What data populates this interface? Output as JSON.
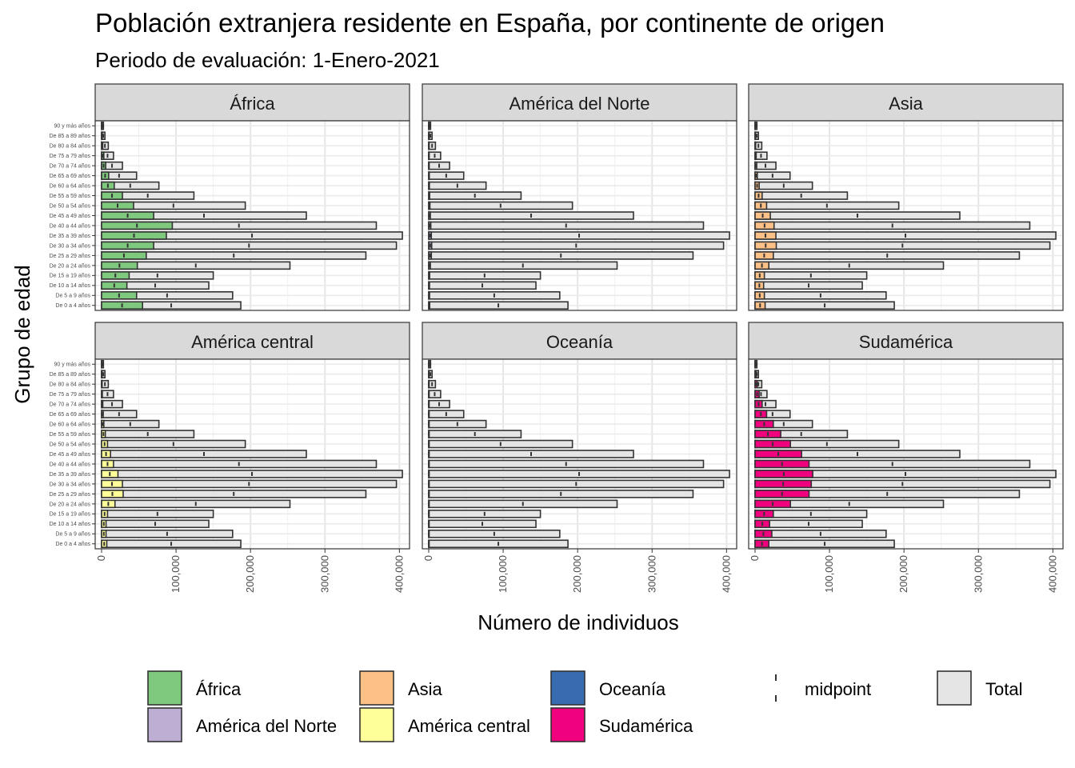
{
  "chart_data": {
    "type": "bar",
    "orientation": "horizontal",
    "layout": "facet-grid-2x3",
    "title": "Población extranjera residente en España, por continente de origen",
    "subtitle": "Periodo de evaluación: 1-Enero-2021",
    "xlabel": "Número de individuos",
    "ylabel": "Grupo de edad",
    "xlim": [
      0,
      405000
    ],
    "x_ticks": [
      0,
      100000,
      200000,
      300000,
      400000
    ],
    "x_tick_labels": [
      "0",
      "100,000",
      "200,000",
      "300,000",
      "400,000"
    ],
    "grid": true,
    "categories": [
      "90 y más años",
      "De 85 a 89 años",
      "De 80 a 84 años",
      "De 75 a 79 años",
      "De 70 a 74 años",
      "De 65 a 69 años",
      "De 60 a 64 años",
      "De 55 a 59 años",
      "De 50 a 54 años",
      "De 45 a 49 años",
      "De 40 a 44 años",
      "De 35 a 39 años",
      "De 30 a 34 años",
      "De 25 a 29 años",
      "De 20 a 24 años",
      "De 15 a 19 años",
      "De 10 a 14 años",
      "De 5 a 9 años",
      "De 0 a 4 años"
    ],
    "totals": [
      2500,
      4500,
      9000,
      16000,
      28000,
      47000,
      77000,
      124000,
      193000,
      275000,
      369000,
      404000,
      396000,
      355000,
      253000,
      150000,
      144000,
      176000,
      187000
    ],
    "legend_position": "bottom",
    "legend": [
      {
        "label": "África",
        "color": "#7fc97f"
      },
      {
        "label": "América del Norte",
        "color": "#beaed4"
      },
      {
        "label": "Asia",
        "color": "#fdc086"
      },
      {
        "label": "América central",
        "color": "#ffff99"
      },
      {
        "label": "Oceanía",
        "color": "#386cb0"
      },
      {
        "label": "Sudamérica",
        "color": "#f0027f"
      },
      {
        "label": "midpoint",
        "kind": "line"
      },
      {
        "label": "Total",
        "color": "#e5e5e5"
      }
    ],
    "series": [
      {
        "name": "África",
        "facet": "África",
        "color": "#7fc97f",
        "values": [
          500,
          800,
          1500,
          3000,
          5500,
          9500,
          17000,
          28000,
          43000,
          70000,
          95000,
          87000,
          70000,
          60000,
          48000,
          37000,
          34000,
          47000,
          55000
        ]
      },
      {
        "name": "América del Norte",
        "facet": "América del Norte",
        "color": "#beaed4",
        "values": [
          100,
          150,
          200,
          350,
          500,
          700,
          900,
          1200,
          1600,
          2200,
          2800,
          3500,
          4000,
          3500,
          2200,
          1200,
          1000,
          1100,
          1300
        ]
      },
      {
        "name": "Asia",
        "facet": "Asia",
        "color": "#fdc086",
        "values": [
          300,
          500,
          800,
          1500,
          2200,
          3000,
          5500,
          9500,
          15500,
          20500,
          25500,
          28000,
          28500,
          24500,
          18500,
          12500,
          11500,
          12500,
          13500
        ]
      },
      {
        "name": "América central",
        "facet": "América central",
        "color": "#ffff99",
        "values": [
          200,
          300,
          600,
          1000,
          1600,
          2200,
          3000,
          5000,
          8000,
          12000,
          16000,
          22000,
          28000,
          29000,
          18000,
          8000,
          6000,
          6000,
          7000
        ]
      },
      {
        "name": "Oceanía",
        "facet": "Oceanía",
        "color": "#386cb0",
        "values": [
          20,
          30,
          50,
          80,
          100,
          150,
          200,
          300,
          350,
          400,
          450,
          500,
          500,
          450,
          300,
          200,
          150,
          150,
          180
        ]
      },
      {
        "name": "Sudamérica",
        "facet": "Sudamérica",
        "color": "#f0027f",
        "values": [
          500,
          1500,
          3000,
          5500,
          9500,
          15500,
          24500,
          34500,
          47500,
          62500,
          72500,
          77500,
          75500,
          72500,
          47500,
          24500,
          19500,
          22500,
          18500
        ]
      }
    ]
  }
}
